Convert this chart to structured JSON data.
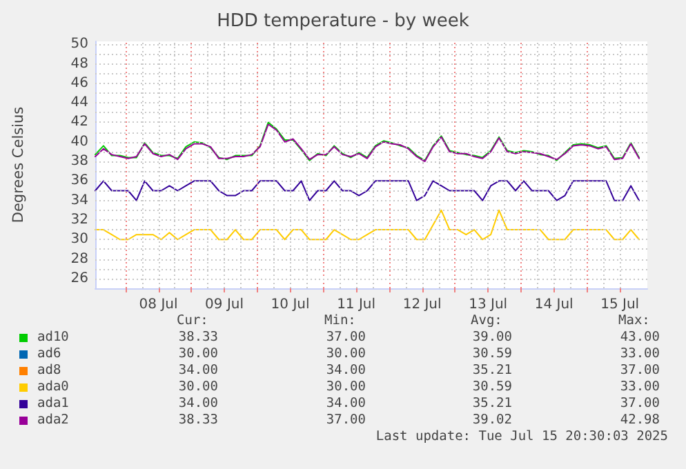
{
  "chart_data": {
    "type": "line",
    "title": "HDD temperature - by week",
    "ylabel": "Degrees Celsius",
    "x": [
      "2025-07-07T13:00",
      "2025-07-07T16:00",
      "2025-07-07T19:00",
      "2025-07-07T22:00",
      "2025-07-08T01:00",
      "2025-07-08T04:00",
      "2025-07-08T07:00",
      "2025-07-08T10:00",
      "2025-07-08T13:00",
      "2025-07-08T16:00",
      "2025-07-08T19:00",
      "2025-07-08T22:00",
      "2025-07-09T01:00",
      "2025-07-09T04:00",
      "2025-07-09T07:00",
      "2025-07-09T10:00",
      "2025-07-09T13:00",
      "2025-07-09T16:00",
      "2025-07-09T19:00",
      "2025-07-09T22:00",
      "2025-07-10T01:00",
      "2025-07-10T04:00",
      "2025-07-10T07:00",
      "2025-07-10T10:00",
      "2025-07-10T13:00",
      "2025-07-10T16:00",
      "2025-07-10T19:00",
      "2025-07-10T22:00",
      "2025-07-11T01:00",
      "2025-07-11T04:00",
      "2025-07-11T07:00",
      "2025-07-11T10:00",
      "2025-07-11T13:00",
      "2025-07-11T16:00",
      "2025-07-11T19:00",
      "2025-07-11T22:00",
      "2025-07-12T01:00",
      "2025-07-12T04:00",
      "2025-07-12T07:00",
      "2025-07-12T10:00",
      "2025-07-12T13:00",
      "2025-07-12T16:00",
      "2025-07-12T19:00",
      "2025-07-12T22:00",
      "2025-07-13T01:00",
      "2025-07-13T04:00",
      "2025-07-13T07:00",
      "2025-07-13T10:00",
      "2025-07-13T13:00",
      "2025-07-13T16:00",
      "2025-07-13T19:00",
      "2025-07-13T22:00",
      "2025-07-14T01:00",
      "2025-07-14T04:00",
      "2025-07-14T07:00",
      "2025-07-14T10:00",
      "2025-07-14T13:00",
      "2025-07-14T16:00",
      "2025-07-14T19:00",
      "2025-07-14T22:00",
      "2025-07-15T01:00",
      "2025-07-15T04:00",
      "2025-07-15T07:00",
      "2025-07-15T10:00",
      "2025-07-15T13:00",
      "2025-07-15T16:00",
      "2025-07-15T19:00"
    ],
    "series": [
      {
        "name": "ad10",
        "color": "#00cc00",
        "values": [
          38.7,
          39.6,
          38.6,
          38.6,
          38.4,
          38.4,
          39.9,
          38.9,
          38.6,
          38.6,
          38.3,
          39.5,
          40,
          39.9,
          39.4,
          38.4,
          38.2,
          38.6,
          38.6,
          38.6,
          39.6,
          42,
          41.3,
          40.2,
          40.2,
          39.2,
          38.1,
          38.8,
          38.6,
          39.6,
          38.8,
          38.4,
          38.9,
          38.4,
          39.6,
          40.1,
          39.9,
          39.6,
          39.4,
          38.6,
          38.1,
          39.6,
          40.6,
          39.1,
          38.9,
          38.7,
          38.6,
          38.4,
          39.1,
          40.5,
          39.1,
          38.9,
          39.1,
          39,
          38.7,
          38.6,
          38.1,
          38.9,
          39.7,
          39.8,
          39.7,
          39.4,
          39.6,
          38.3,
          38.4,
          39.9,
          38.4
        ]
      },
      {
        "name": "ad6",
        "color": "#0066b3",
        "values": [
          null,
          null,
          null,
          null,
          null,
          null,
          null,
          null,
          null,
          null,
          null,
          null,
          null,
          null,
          null,
          null,
          null,
          null,
          null,
          null,
          null,
          null,
          null,
          null,
          null,
          null,
          null,
          null,
          null,
          null,
          null,
          null,
          null,
          null,
          null,
          null,
          null,
          null,
          null,
          null,
          null,
          null,
          null,
          null,
          null,
          null,
          null,
          null,
          null,
          null,
          null,
          null,
          null,
          null,
          null,
          null,
          null,
          null,
          null,
          null,
          null,
          null,
          null,
          null,
          null,
          null,
          null
        ]
      },
      {
        "name": "ad8",
        "color": "#ff8000",
        "values": [
          null,
          null,
          null,
          null,
          null,
          null,
          null,
          null,
          null,
          null,
          null,
          null,
          null,
          null,
          null,
          null,
          null,
          null,
          null,
          null,
          null,
          null,
          null,
          null,
          null,
          null,
          null,
          null,
          null,
          null,
          null,
          null,
          null,
          null,
          null,
          null,
          null,
          null,
          null,
          null,
          null,
          null,
          null,
          null,
          null,
          null,
          null,
          null,
          null,
          null,
          null,
          null,
          null,
          null,
          null,
          null,
          null,
          null,
          null,
          null,
          null,
          null,
          null,
          null,
          null,
          null,
          null
        ]
      },
      {
        "name": "ada0",
        "color": "#ffcc00",
        "values": [
          31,
          31,
          30.5,
          30,
          30,
          30.5,
          30.5,
          30.5,
          30,
          30.7,
          30,
          30.5,
          31,
          31,
          31,
          30,
          30,
          31,
          30,
          30,
          31,
          31,
          31,
          30,
          31,
          31,
          30,
          30,
          30,
          31,
          30.5,
          30,
          30,
          30.5,
          31,
          31,
          31,
          31,
          31,
          30,
          30,
          31.5,
          33,
          31,
          31,
          30.5,
          31,
          30,
          30.5,
          33,
          31,
          31,
          31,
          31,
          31,
          30,
          30,
          30,
          31,
          31,
          31,
          31,
          31,
          30,
          30,
          31,
          30
        ]
      },
      {
        "name": "ada1",
        "color": "#330099",
        "values": [
          35,
          36,
          35,
          35,
          35,
          34,
          36,
          35,
          35,
          35.5,
          35,
          35.5,
          36,
          36,
          36,
          35,
          34.5,
          34.5,
          35,
          35,
          36,
          36,
          36,
          35,
          35,
          36,
          34,
          35,
          35,
          36,
          35,
          35,
          34.5,
          35,
          36,
          36,
          36,
          36,
          36,
          34,
          34.5,
          36,
          35.5,
          35,
          35,
          35,
          35,
          34,
          35.5,
          36,
          36,
          35,
          36,
          35,
          35,
          35,
          34,
          34.5,
          36,
          36,
          36,
          36,
          36,
          34,
          34,
          35.5,
          34
        ]
      },
      {
        "name": "ada2",
        "color": "#990099",
        "values": [
          38.5,
          39.3,
          38.7,
          38.5,
          38.3,
          38.5,
          39.8,
          38.8,
          38.5,
          38.7,
          38.2,
          39.3,
          39.8,
          39.8,
          39.5,
          38.3,
          38.3,
          38.5,
          38.5,
          38.7,
          39.5,
          41.8,
          41.2,
          40,
          40.3,
          39.3,
          38.2,
          38.7,
          38.7,
          39.5,
          38.7,
          38.5,
          38.8,
          38.3,
          39.5,
          40,
          39.8,
          39.7,
          39.3,
          38.5,
          38,
          39.5,
          40.5,
          39,
          38.8,
          38.8,
          38.5,
          38.3,
          39,
          40.4,
          39,
          38.8,
          39,
          38.9,
          38.8,
          38.5,
          38.2,
          38.8,
          39.6,
          39.7,
          39.6,
          39.3,
          39.5,
          38.2,
          38.3,
          39.8,
          38.3
        ]
      }
    ],
    "xlim": [
      "2025-07-07T13:00",
      "2025-07-15T22:00"
    ],
    "xticks": [
      {
        "value": "2025-07-08T00:00",
        "label": null
      },
      {
        "value": "2025-07-08T12:00",
        "label": "08 Jul"
      },
      {
        "value": "2025-07-09T00:00",
        "label": null
      },
      {
        "value": "2025-07-09T12:00",
        "label": "09 Jul"
      },
      {
        "value": "2025-07-10T00:00",
        "label": null
      },
      {
        "value": "2025-07-10T12:00",
        "label": "10 Jul"
      },
      {
        "value": "2025-07-11T00:00",
        "label": null
      },
      {
        "value": "2025-07-11T12:00",
        "label": "11 Jul"
      },
      {
        "value": "2025-07-12T00:00",
        "label": null
      },
      {
        "value": "2025-07-12T12:00",
        "label": "12 Jul"
      },
      {
        "value": "2025-07-13T00:00",
        "label": null
      },
      {
        "value": "2025-07-13T12:00",
        "label": "13 Jul"
      },
      {
        "value": "2025-07-14T00:00",
        "label": null
      },
      {
        "value": "2025-07-14T12:00",
        "label": "14 Jul"
      },
      {
        "value": "2025-07-15T00:00",
        "label": null
      },
      {
        "value": "2025-07-15T12:00",
        "label": "15 Jul"
      }
    ],
    "ylim": [
      25,
      50.3
    ],
    "yticks": [
      26,
      28,
      30,
      32,
      34,
      36,
      38,
      40,
      42,
      44,
      46,
      48,
      50
    ],
    "grid": true,
    "legend": "bottom",
    "marker": "none",
    "line_style": "solid",
    "annotations": [
      "Cur:",
      "Min:",
      "Avg:",
      "Max:",
      "38.33",
      "37.00",
      "39.00",
      "43.00",
      "30.00",
      "30.00",
      "30.59",
      "33.00",
      "34.00",
      "34.00",
      "35.21",
      "37.00",
      "30.00",
      "30.00",
      "30.59",
      "33.00",
      "34.00",
      "34.00",
      "35.21",
      "37.00",
      "38.33",
      "37.00",
      "39.02",
      "42.98",
      "Last update: Tue Jul 15 20:30:03 2025"
    ]
  }
}
